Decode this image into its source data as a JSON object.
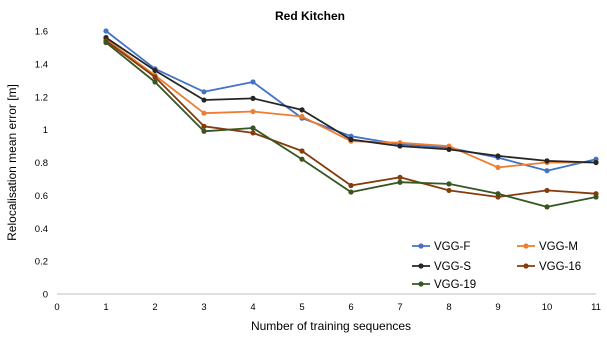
{
  "chart_data": {
    "type": "line",
    "title": "Red Kitchen",
    "xlabel": "Number of training sequences",
    "ylabel": "Relocalisation mean error [m]",
    "xlim": [
      0,
      11
    ],
    "ylim": [
      0,
      1.6
    ],
    "x_ticks": [
      "0",
      "1",
      "2",
      "3",
      "4",
      "5",
      "6",
      "7",
      "8",
      "9",
      "10",
      "11"
    ],
    "y_ticks": [
      "0",
      "0.2",
      "0.4",
      "0.6",
      "0.8",
      "1",
      "1.2",
      "1.4",
      "1.6"
    ],
    "x": [
      1,
      2,
      3,
      4,
      5,
      6,
      7,
      8,
      9,
      10,
      11
    ],
    "grid": false,
    "legend_position": "bottom-right",
    "series": [
      {
        "name": "VGG-F",
        "color": "#4472C4",
        "values": [
          1.6,
          1.37,
          1.23,
          1.29,
          1.07,
          0.96,
          0.91,
          0.89,
          0.83,
          0.75,
          0.82
        ]
      },
      {
        "name": "VGG-M",
        "color": "#ED7D31",
        "values": [
          1.55,
          1.33,
          1.1,
          1.11,
          1.08,
          0.93,
          0.92,
          0.9,
          0.77,
          0.8,
          0.8
        ]
      },
      {
        "name": "VGG-S",
        "color": "#262626",
        "values": [
          1.56,
          1.36,
          1.18,
          1.19,
          1.12,
          0.94,
          0.9,
          0.88,
          0.84,
          0.81,
          0.8
        ]
      },
      {
        "name": "VGG-16",
        "color": "#843C0C",
        "values": [
          1.54,
          1.32,
          1.02,
          0.98,
          0.87,
          0.66,
          0.71,
          0.63,
          0.59,
          0.63,
          0.61
        ]
      },
      {
        "name": "VGG-19",
        "color": "#375623",
        "values": [
          1.53,
          1.29,
          0.99,
          1.01,
          0.82,
          0.62,
          0.68,
          0.67,
          0.61,
          0.53,
          0.59
        ]
      }
    ]
  }
}
